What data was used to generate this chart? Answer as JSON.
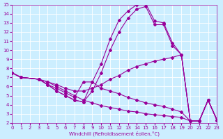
{
  "bg_color": "#cceeff",
  "line_color": "#990099",
  "grid_color": "#ffffff",
  "xlabel": "Windchill (Refroidissement éolien,°C)",
  "xlim": [
    0,
    23
  ],
  "ylim": [
    2,
    15
  ],
  "xticks": [
    0,
    1,
    2,
    3,
    4,
    5,
    6,
    7,
    8,
    9,
    10,
    11,
    12,
    13,
    14,
    15,
    16,
    17,
    18,
    19,
    20,
    21,
    22,
    23
  ],
  "yticks": [
    2,
    3,
    4,
    5,
    6,
    7,
    8,
    9,
    10,
    11,
    12,
    13,
    14,
    15
  ],
  "lines": [
    {
      "x": [
        0,
        1,
        3,
        4,
        5,
        6,
        7,
        8,
        9,
        10,
        11,
        12,
        13,
        14,
        15,
        16,
        17,
        18,
        19,
        20,
        21,
        22,
        23
      ],
      "y": [
        7.5,
        7.0,
        6.8,
        6.2,
        5.5,
        5.0,
        4.5,
        4.3,
        6.5,
        8.5,
        11.2,
        13.3,
        14.3,
        15.0,
        15.1,
        13.2,
        13.0,
        10.8,
        9.5,
        2.2,
        2.2,
        4.5,
        2.3
      ]
    },
    {
      "x": [
        0,
        1,
        3,
        4,
        5,
        6,
        7,
        8,
        9,
        10,
        11,
        12,
        13,
        14,
        15,
        16,
        17,
        18,
        19,
        20,
        21,
        22,
        23
      ],
      "y": [
        7.5,
        7.0,
        6.8,
        6.2,
        5.5,
        5.0,
        4.5,
        4.3,
        5.5,
        7.5,
        10.0,
        12.0,
        13.5,
        14.5,
        14.8,
        12.8,
        12.8,
        10.5,
        9.5,
        2.2,
        2.2,
        4.5,
        2.3
      ]
    },
    {
      "x": [
        0,
        1,
        3,
        4,
        5,
        6,
        7,
        8,
        9,
        10,
        11,
        12,
        13,
        14,
        15,
        16,
        17,
        18,
        19,
        20,
        21,
        22,
        23
      ],
      "y": [
        7.5,
        7.0,
        6.8,
        6.5,
        6.2,
        5.8,
        5.5,
        5.5,
        5.8,
        6.2,
        6.8,
        7.2,
        7.8,
        8.2,
        8.5,
        8.8,
        9.0,
        9.2,
        9.5,
        2.2,
        2.2,
        4.5,
        2.3
      ]
    },
    {
      "x": [
        0,
        1,
        3,
        4,
        5,
        6,
        7,
        8,
        9,
        10,
        11,
        12,
        13,
        14,
        15,
        16,
        17,
        18,
        19,
        20,
        21,
        22,
        23
      ],
      "y": [
        7.5,
        7.0,
        6.8,
        6.2,
        5.8,
        5.3,
        4.8,
        6.5,
        6.5,
        5.8,
        5.5,
        5.2,
        4.8,
        4.5,
        4.2,
        4.0,
        3.8,
        3.5,
        3.2,
        2.2,
        2.2,
        4.5,
        2.3
      ]
    },
    {
      "x": [
        0,
        1,
        3,
        4,
        5,
        6,
        7,
        8,
        9,
        10,
        11,
        12,
        13,
        14,
        15,
        16,
        17,
        18,
        19,
        20,
        21,
        22,
        23
      ],
      "y": [
        7.5,
        7.0,
        6.8,
        6.5,
        6.0,
        5.5,
        5.0,
        4.5,
        4.2,
        3.9,
        3.7,
        3.5,
        3.3,
        3.2,
        3.0,
        2.9,
        2.8,
        2.7,
        2.6,
        2.2,
        2.2,
        4.5,
        2.3
      ]
    }
  ]
}
